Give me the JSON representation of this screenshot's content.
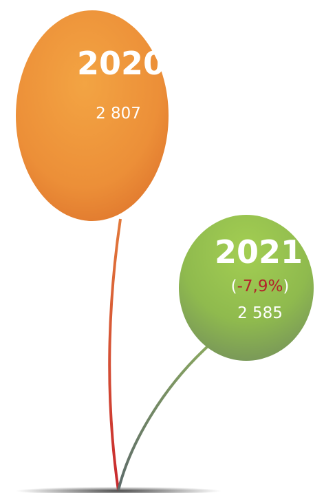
{
  "balloons": [
    {
      "year": "2020",
      "value": "2 807"
    },
    {
      "year": "2021",
      "change": {
        "open": "(",
        "value": "-7,9%",
        "close": ")"
      },
      "value": "2 585"
    }
  ]
}
